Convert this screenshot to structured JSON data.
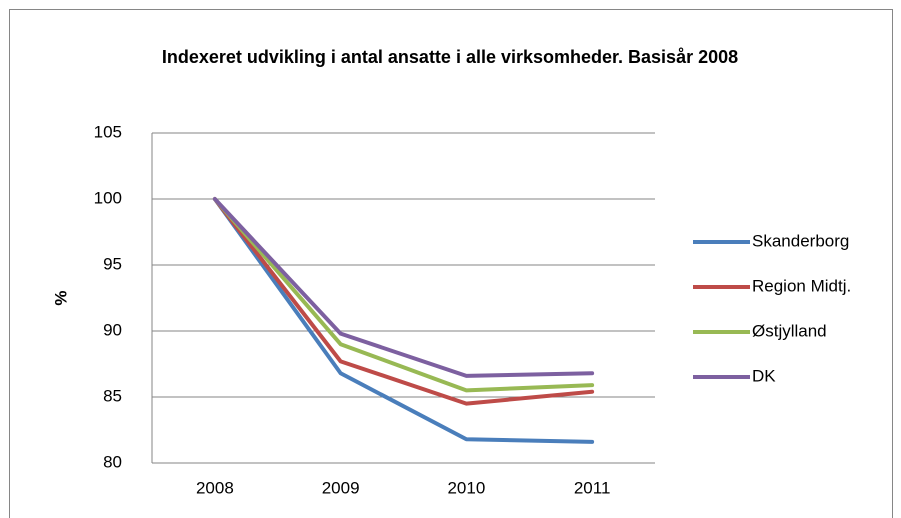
{
  "chart_data": {
    "type": "line",
    "title": "Indexeret udvikling i antal ansatte i alle virksomheder. Basisår 2008",
    "ylabel": "%",
    "categories": [
      "2008",
      "2009",
      "2010",
      "2011"
    ],
    "series": [
      {
        "name": "Skanderborg",
        "color": "#4a7ebb",
        "values": [
          100,
          86.8,
          81.8,
          81.6
        ]
      },
      {
        "name": "Region Midtj.",
        "color": "#be4b48",
        "values": [
          100,
          87.7,
          84.5,
          85.4
        ]
      },
      {
        "name": "Østjylland",
        "color": "#98b954",
        "values": [
          100,
          89.0,
          85.5,
          85.9
        ]
      },
      {
        "name": "DK",
        "color": "#7d60a0",
        "values": [
          100,
          89.8,
          86.6,
          86.8
        ]
      }
    ],
    "ylim": [
      80,
      105
    ],
    "yticks": [
      80,
      85,
      90,
      95,
      100,
      105
    ],
    "grid": true,
    "legend": "right"
  }
}
